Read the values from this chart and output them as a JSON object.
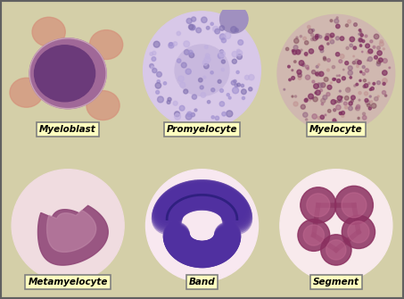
{
  "background_color": "#d4cfa8",
  "labels": [
    [
      "Myeloblast",
      "Promyelocyte",
      "Myelocyte"
    ],
    [
      "Metamyelocyte",
      "Band",
      "Segment"
    ]
  ],
  "label_bg": "#ffffc0",
  "label_border": "#808080",
  "outer_border_color": "#606060",
  "fig_width": 4.53,
  "fig_height": 3.35,
  "dpi": 100
}
